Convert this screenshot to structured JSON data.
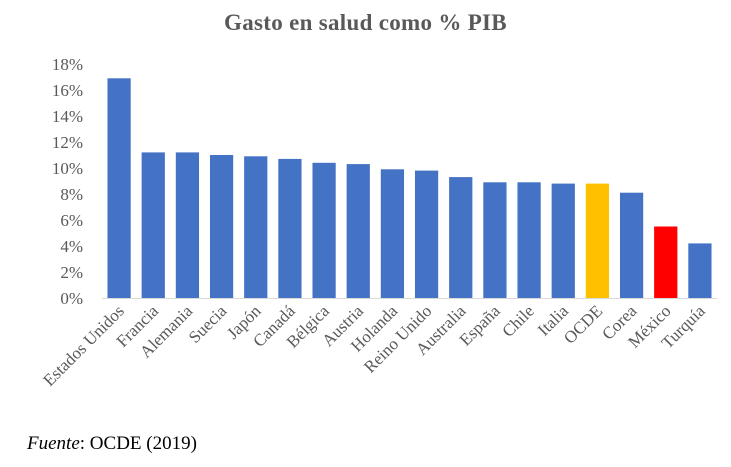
{
  "chart_data": {
    "type": "bar",
    "title": "Gasto en salud como % PIB",
    "categories": [
      "Estados Unidos",
      "Francia",
      "Alemania",
      "Suecia",
      "Japón",
      "Canadá",
      "Bélgica",
      "Austria",
      "Holanda",
      "Reino Unido",
      "Australia",
      "España",
      "Chile",
      "Italia",
      "OCDE",
      "Corea",
      "México",
      "Turquía"
    ],
    "values": [
      16.9,
      11.2,
      11.2,
      11.0,
      10.9,
      10.7,
      10.4,
      10.3,
      9.9,
      9.8,
      9.3,
      8.9,
      8.9,
      8.8,
      8.8,
      8.1,
      5.5,
      4.2
    ],
    "y_ticks": [
      "0%",
      "2%",
      "4%",
      "6%",
      "8%",
      "10%",
      "12%",
      "14%",
      "16%",
      "18%"
    ],
    "ylim": [
      0,
      18
    ],
    "grid": false,
    "legend": "none",
    "colors": {
      "default": "#4472C4",
      "highlight": {
        "OCDE": "#FFC000",
        "México": "#FF0000"
      }
    }
  },
  "source": {
    "label": "Fuente",
    "text": ": OCDE (2019)"
  }
}
